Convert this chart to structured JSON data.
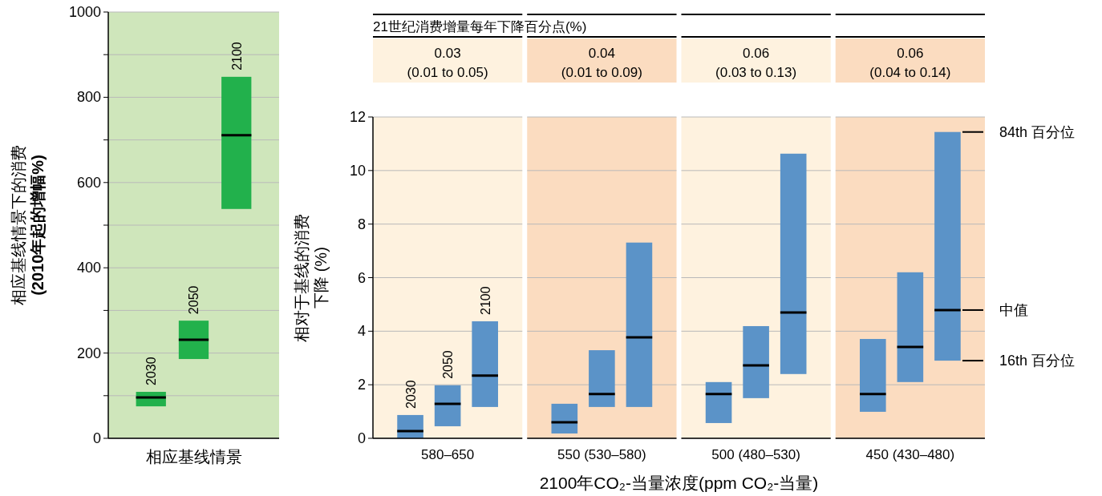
{
  "chart_data": [
    {
      "type": "box",
      "ylabel": "相应基线情景下的消费\n(2010年起的增幅%)",
      "xlabel": "相应基线情景",
      "categories": [
        "2030",
        "2050",
        "2100"
      ],
      "series": [
        {
          "color": "#22b14c",
          "boxes": [
            {
              "low": 75,
              "q1": 75,
              "median": 96,
              "q3": 109,
              "high": 109
            },
            {
              "low": 186,
              "q1": 186,
              "median": 231,
              "q3": 276,
              "high": 276
            },
            {
              "low": 538,
              "q1": 538,
              "median": 711,
              "q3": 848,
              "high": 848
            }
          ]
        }
      ],
      "ylim": [
        0,
        1000
      ],
      "yticks": [
        0,
        {
          "value": 100,
          "label": null
        },
        200,
        {
          "value": 300,
          "label": null
        },
        400,
        {
          "value": 500,
          "label": null
        },
        600,
        {
          "value": 700,
          "label": null
        },
        800,
        {
          "value": 900,
          "label": null
        },
        1000
      ],
      "grid": "y",
      "bands": [
        {
          "axis": "y",
          "from": 0,
          "to": 1000,
          "color": "#cfe6bb"
        }
      ]
    },
    {
      "type": "box",
      "title": "21世纪消费增量每年下降百分点(%)",
      "ylabel": "相对于基线的消费下降 (%)",
      "xlabel": "2100年CO₂-当量浓度(ppm CO₂-当量)",
      "categories": [
        "580–650",
        "550 (530–580)",
        "500 (480–530)",
        "450 (430–480)"
      ],
      "series": [
        {
          "name": "2030",
          "color": "#5b93c8",
          "boxes": [
            {
              "low": 0,
              "q1": 0,
              "median": 0.27,
              "q3": 0.87,
              "high": 0.87
            },
            {
              "low": 0.18,
              "q1": 0.18,
              "median": 0.6,
              "q3": 1.29,
              "high": 1.29
            },
            {
              "low": 0.57,
              "q1": 0.57,
              "median": 1.65,
              "q3": 2.1,
              "high": 2.1
            },
            {
              "low": 0.99,
              "q1": 0.99,
              "median": 1.65,
              "q3": 3.71,
              "high": 3.71
            }
          ]
        },
        {
          "name": "2050",
          "color": "#5b93c8",
          "boxes": [
            {
              "low": 0.45,
              "q1": 0.45,
              "median": 1.29,
              "q3": 1.98,
              "high": 1.98
            },
            {
              "low": 1.17,
              "q1": 1.17,
              "median": 1.65,
              "q3": 3.29,
              "high": 3.29
            },
            {
              "low": 1.5,
              "q1": 1.5,
              "median": 2.72,
              "q3": 4.19,
              "high": 4.19
            },
            {
              "low": 2.1,
              "q1": 2.1,
              "median": 3.41,
              "q3": 6.2,
              "high": 6.2
            }
          ]
        },
        {
          "name": "2100",
          "color": "#5b93c8",
          "boxes": [
            {
              "low": 1.17,
              "q1": 1.17,
              "median": 2.34,
              "q3": 4.37,
              "high": 4.37
            },
            {
              "low": 1.17,
              "q1": 1.17,
              "median": 3.77,
              "q3": 7.31,
              "high": 7.31
            },
            {
              "low": 2.4,
              "q1": 2.4,
              "median": 4.7,
              "q3": 10.63,
              "high": 10.63
            },
            {
              "low": 2.9,
              "q1": 2.9,
              "median": 4.79,
              "q3": 11.44,
              "high": 11.44
            }
          ]
        }
      ],
      "ylim": [
        0,
        12
      ],
      "yticks": [
        0,
        2,
        4,
        6,
        8,
        10,
        12
      ],
      "grid": "y",
      "bands": [
        {
          "axis": "x",
          "from": "580–650",
          "to": "580–650",
          "color": "#fef2df"
        },
        {
          "axis": "x",
          "from": "550 (530–580)",
          "to": "550 (530–580)",
          "color": "#fbdcc0"
        },
        {
          "axis": "x",
          "from": "500 (480–530)",
          "to": "500 (480–530)",
          "color": "#fef2df"
        },
        {
          "axis": "x",
          "from": "450 (430–480)",
          "to": "450 (430–480)",
          "color": "#fbdcc0"
        }
      ],
      "annotations": [
        "0.03",
        "(0.01 to 0.05)",
        "0.04",
        "(0.01 to 0.09)",
        "0.06",
        "(0.03 to 0.13)",
        "0.06",
        "(0.04 to 0.14)",
        "84th 百分位",
        "中值",
        "16th 百分位"
      ]
    }
  ]
}
